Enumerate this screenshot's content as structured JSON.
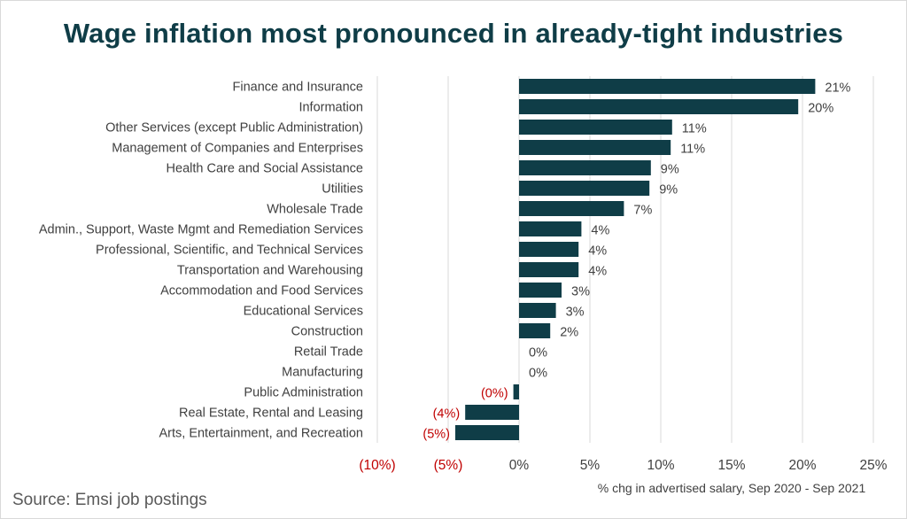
{
  "title": "Wage inflation most pronounced in already-tight industries",
  "source": "Source: Emsi job postings",
  "colors": {
    "bar": "#0f3d47",
    "title": "#0f3d47",
    "negative_text": "#c00000",
    "text": "#404040",
    "grid": "#d9d9d9"
  },
  "chart_data": {
    "type": "bar",
    "orientation": "horizontal",
    "categories": [
      "Finance and Insurance",
      "Information",
      "Other Services (except Public Administration)",
      "Management of Companies and Enterprises",
      "Health Care and Social Assistance",
      "Utilities",
      "Wholesale Trade",
      "Admin., Support, Waste Mgmt and Remediation Services",
      "Professional, Scientific, and Technical Services",
      "Transportation and Warehousing",
      "Accommodation and Food Services",
      "Educational Services",
      "Construction",
      "Retail Trade",
      "Manufacturing",
      "Public Administration",
      "Real Estate, Rental and Leasing",
      "Arts, Entertainment, and Recreation"
    ],
    "values": [
      20.9,
      19.7,
      10.8,
      10.7,
      9.3,
      9.2,
      7.4,
      4.4,
      4.2,
      4.2,
      3.0,
      2.6,
      2.2,
      0,
      0,
      -0.4,
      -3.8,
      -4.5
    ],
    "data_labels": [
      "21%",
      "20%",
      "11%",
      "11%",
      "9%",
      "9%",
      "7%",
      "4%",
      "4%",
      "4%",
      "3%",
      "3%",
      "2%",
      "0%",
      "0%",
      "(0%)",
      "(4%)",
      "(5%)"
    ],
    "xlim": [
      -10,
      25
    ],
    "xticks": [
      -10,
      -5,
      0,
      5,
      10,
      15,
      20,
      25
    ],
    "xtick_labels": [
      "(10%)",
      "(5%)",
      "0%",
      "5%",
      "10%",
      "15%",
      "20%",
      "25%"
    ],
    "xlabel": "% chg in advertised salary, Sep 2020 - Sep 2021",
    "ylabel": "",
    "grid": "vertical"
  }
}
